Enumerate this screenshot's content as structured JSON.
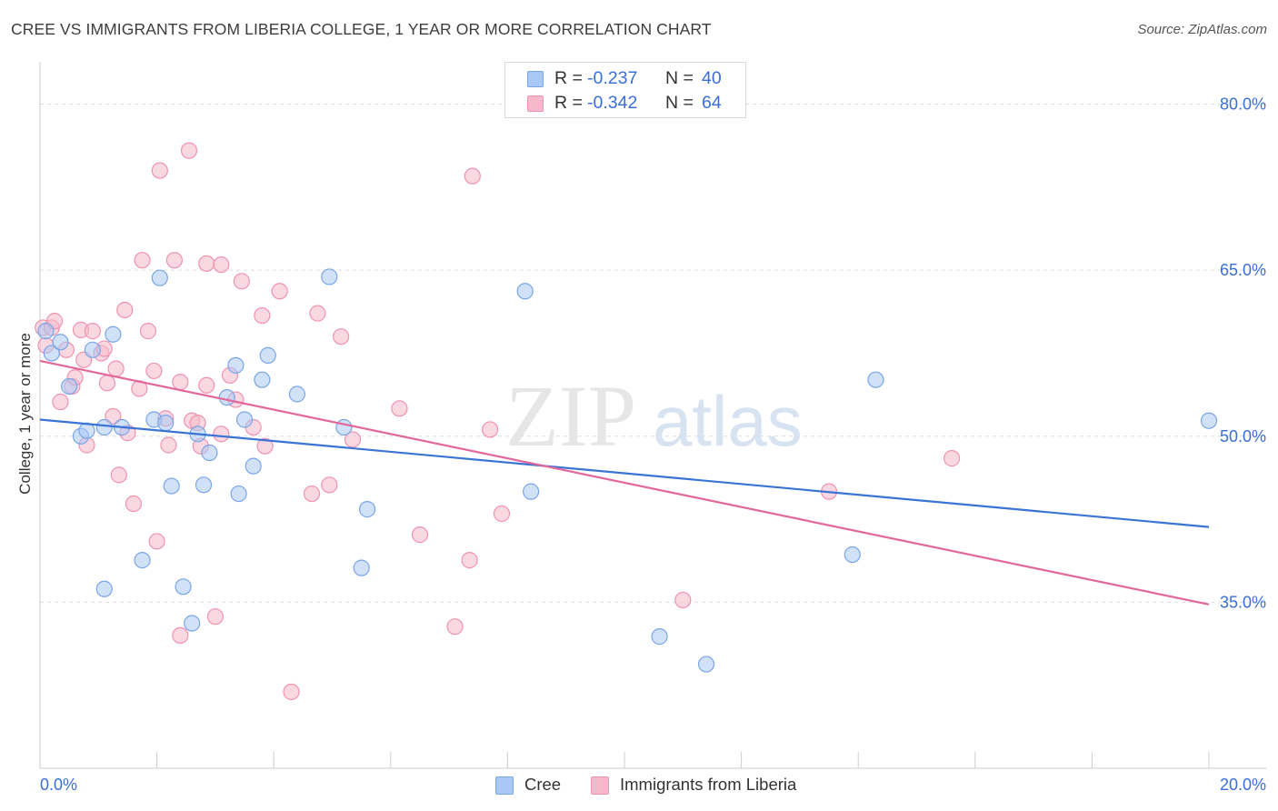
{
  "header": {
    "title": "CREE VS IMMIGRANTS FROM LIBERIA COLLEGE, 1 YEAR OR MORE CORRELATION CHART",
    "source": "Source: ZipAtlas.com"
  },
  "watermark": {
    "zip": "ZIP",
    "atlas": "atlas"
  },
  "legend_top": {
    "rows": [
      {
        "r_label": "R = ",
        "r_value": "-0.237",
        "n_label": "N = ",
        "n_value": "40"
      },
      {
        "r_label": "R = ",
        "r_value": "-0.342",
        "n_label": "N = ",
        "n_value": "64"
      }
    ]
  },
  "legend_bottom": {
    "items": [
      "Cree",
      "Immigrants from Liberia"
    ]
  },
  "colors": {
    "blue_fill": "#a9c8f3",
    "blue_stroke": "#7aa6e6",
    "blue_line": "#3a74d4",
    "pink_fill": "#f6b8cb",
    "pink_stroke": "#ee93b0",
    "pink_line": "#e2679a",
    "axis_text": "#3a6fd8",
    "grid": "#dddddd"
  },
  "chart_data": {
    "type": "scatter",
    "title": "CREE VS IMMIGRANTS FROM LIBERIA COLLEGE, 1 YEAR OR MORE CORRELATION CHART",
    "xlabel": "",
    "ylabel": "College, 1 year or more",
    "xlim": [
      0,
      20
    ],
    "ylim": [
      20,
      83
    ],
    "x_tick_labels": [
      "0.0%",
      "20.0%"
    ],
    "y_ticks": [
      35,
      50,
      65,
      80
    ],
    "y_tick_labels": [
      "35.0%",
      "50.0%",
      "65.0%",
      "80.0%"
    ],
    "grid": true,
    "series": [
      {
        "name": "Cree",
        "R": -0.237,
        "N": 40,
        "trend": {
          "x": [
            0,
            20
          ],
          "y": [
            51.5,
            41.8
          ]
        },
        "points": [
          [
            0.1,
            59.5
          ],
          [
            0.2,
            57.5
          ],
          [
            0.35,
            58.5
          ],
          [
            0.5,
            54.5
          ],
          [
            0.7,
            50.0
          ],
          [
            0.8,
            50.5
          ],
          [
            0.9,
            57.8
          ],
          [
            1.1,
            50.8
          ],
          [
            1.25,
            59.2
          ],
          [
            1.4,
            50.8
          ],
          [
            2.05,
            64.3
          ],
          [
            1.75,
            38.8
          ],
          [
            1.1,
            36.2
          ],
          [
            1.95,
            51.5
          ],
          [
            2.15,
            51.2
          ],
          [
            2.25,
            45.5
          ],
          [
            2.45,
            36.4
          ],
          [
            2.6,
            33.1
          ],
          [
            2.7,
            50.2
          ],
          [
            2.8,
            45.6
          ],
          [
            2.9,
            48.5
          ],
          [
            3.2,
            53.5
          ],
          [
            3.35,
            56.4
          ],
          [
            3.4,
            44.8
          ],
          [
            3.5,
            51.5
          ],
          [
            3.65,
            47.3
          ],
          [
            3.8,
            55.1
          ],
          [
            3.9,
            57.3
          ],
          [
            4.4,
            53.8
          ],
          [
            4.95,
            64.4
          ],
          [
            5.2,
            50.8
          ],
          [
            5.6,
            43.4
          ],
          [
            5.5,
            38.1
          ],
          [
            8.3,
            63.1
          ],
          [
            8.4,
            45.0
          ],
          [
            10.6,
            31.9
          ],
          [
            11.4,
            29.4
          ],
          [
            13.9,
            39.3
          ],
          [
            14.3,
            55.1
          ],
          [
            20.0,
            51.4
          ]
        ]
      },
      {
        "name": "Immigrants from Liberia",
        "R": -0.342,
        "N": 64,
        "trend": {
          "x": [
            0,
            20
          ],
          "y": [
            56.8,
            34.8
          ]
        },
        "points": [
          [
            0.05,
            59.8
          ],
          [
            0.1,
            58.2
          ],
          [
            0.2,
            59.8
          ],
          [
            0.25,
            60.4
          ],
          [
            0.35,
            53.1
          ],
          [
            0.45,
            57.8
          ],
          [
            0.55,
            54.5
          ],
          [
            0.6,
            55.3
          ],
          [
            0.7,
            59.6
          ],
          [
            0.75,
            56.9
          ],
          [
            0.8,
            49.2
          ],
          [
            0.9,
            59.5
          ],
          [
            1.05,
            57.5
          ],
          [
            1.1,
            57.9
          ],
          [
            1.15,
            54.8
          ],
          [
            1.25,
            51.8
          ],
          [
            1.3,
            56.1
          ],
          [
            1.35,
            46.5
          ],
          [
            1.45,
            61.4
          ],
          [
            1.5,
            50.3
          ],
          [
            1.6,
            43.9
          ],
          [
            1.7,
            54.3
          ],
          [
            1.75,
            65.9
          ],
          [
            1.85,
            59.5
          ],
          [
            1.95,
            55.9
          ],
          [
            2.0,
            40.5
          ],
          [
            2.05,
            74.0
          ],
          [
            2.15,
            51.6
          ],
          [
            2.2,
            49.2
          ],
          [
            2.3,
            65.9
          ],
          [
            2.4,
            54.9
          ],
          [
            2.4,
            32.0
          ],
          [
            2.55,
            75.8
          ],
          [
            2.6,
            51.4
          ],
          [
            2.7,
            51.2
          ],
          [
            2.75,
            49.1
          ],
          [
            2.85,
            54.6
          ],
          [
            2.85,
            65.6
          ],
          [
            3.0,
            33.7
          ],
          [
            3.1,
            65.5
          ],
          [
            3.1,
            50.2
          ],
          [
            3.25,
            55.5
          ],
          [
            3.35,
            53.3
          ],
          [
            3.45,
            64.0
          ],
          [
            3.65,
            50.8
          ],
          [
            3.8,
            60.9
          ],
          [
            3.85,
            49.1
          ],
          [
            4.1,
            63.1
          ],
          [
            4.3,
            26.9
          ],
          [
            4.65,
            44.8
          ],
          [
            4.75,
            61.1
          ],
          [
            4.95,
            45.6
          ],
          [
            5.15,
            59.0
          ],
          [
            5.35,
            49.7
          ],
          [
            6.15,
            52.5
          ],
          [
            6.5,
            41.1
          ],
          [
            7.1,
            32.8
          ],
          [
            7.35,
            38.8
          ],
          [
            7.4,
            73.5
          ],
          [
            7.7,
            50.6
          ],
          [
            7.9,
            43.0
          ],
          [
            11.0,
            35.2
          ],
          [
            13.5,
            45.0
          ],
          [
            15.6,
            48.0
          ]
        ]
      }
    ]
  }
}
